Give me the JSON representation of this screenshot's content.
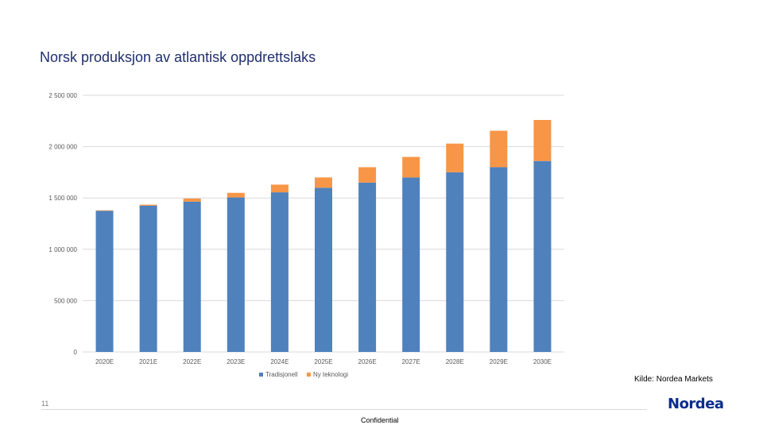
{
  "slide": {
    "title": "Norsk produksjon av atlantisk oppdrettslaks",
    "source": "Kilde: Nordea Markets",
    "page_number": "11",
    "footer_label": "Confidential",
    "logo_text": "Nordea",
    "brand_color": "#0a2d8c"
  },
  "chart_data": {
    "type": "bar",
    "stacked": true,
    "categories": [
      "2020E",
      "2021E",
      "2022E",
      "2023E",
      "2024E",
      "2025E",
      "2026E",
      "2027E",
      "2028E",
      "2029E",
      "2030E"
    ],
    "series": [
      {
        "name": "Tradisjonell",
        "color": "#4f81bd",
        "values": [
          1375000,
          1425000,
          1465000,
          1505000,
          1555000,
          1600000,
          1650000,
          1700000,
          1750000,
          1800000,
          1860000
        ]
      },
      {
        "name": "Ny teknologi",
        "color": "#f79646",
        "values": [
          5000,
          10000,
          30000,
          45000,
          75000,
          100000,
          150000,
          200000,
          280000,
          355000,
          400000
        ]
      }
    ],
    "yticks": [
      "0",
      "500 000",
      "1 000 000",
      "1 500 000",
      "2 000 000",
      "2 500 000"
    ],
    "ylim": [
      0,
      2500000
    ],
    "grid": true,
    "legend_position": "bottom"
  }
}
